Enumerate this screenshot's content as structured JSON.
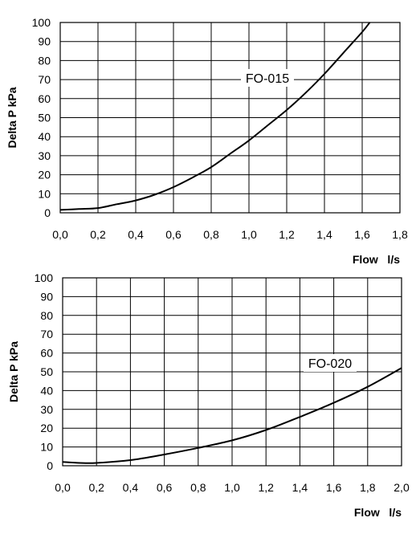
{
  "chart_data": [
    {
      "type": "line",
      "title": "",
      "xlabel": "Flow   l/s",
      "ylabel": "Delta P  kPa",
      "xlim": [
        0.0,
        1.8
      ],
      "ylim": [
        0,
        100
      ],
      "x_ticks": [
        "0,0",
        "0,2",
        "0,4",
        "0,6",
        "0,8",
        "1,0",
        "1,2",
        "1,4",
        "1,6",
        "1,8"
      ],
      "y_ticks": [
        "0",
        "10",
        "20",
        "30",
        "40",
        "50",
        "60",
        "70",
        "80",
        "90",
        "100"
      ],
      "grid": true,
      "series": [
        {
          "name": "FO-015",
          "x": [
            0.0,
            0.1,
            0.2,
            0.3,
            0.4,
            0.5,
            0.6,
            0.7,
            0.8,
            0.9,
            1.0,
            1.1,
            1.2,
            1.3,
            1.4,
            1.5,
            1.6,
            1.64
          ],
          "y": [
            1.5,
            2.0,
            2.5,
            4.5,
            6.5,
            9.5,
            13.5,
            18.5,
            24,
            31,
            38,
            46,
            54,
            63,
            73,
            84,
            95,
            100
          ]
        }
      ]
    },
    {
      "type": "line",
      "title": "",
      "xlabel": "Flow   l/s",
      "ylabel": "Delta P  kPa",
      "xlim": [
        0.0,
        2.0
      ],
      "ylim": [
        0,
        100
      ],
      "x_ticks": [
        "0,0",
        "0,2",
        "0,4",
        "0,6",
        "0,8",
        "1,0",
        "1,2",
        "1,4",
        "1,6",
        "1,8",
        "2,0"
      ],
      "y_ticks": [
        "0",
        "10",
        "20",
        "30",
        "40",
        "50",
        "60",
        "70",
        "80",
        "90",
        "100"
      ],
      "grid": true,
      "series": [
        {
          "name": "FO-020",
          "x": [
            0.0,
            0.1,
            0.2,
            0.4,
            0.6,
            0.8,
            1.0,
            1.2,
            1.4,
            1.6,
            1.8,
            2.0
          ],
          "y": [
            2.0,
            1.5,
            1.5,
            3.0,
            6.0,
            9.5,
            13.5,
            19,
            26,
            33.5,
            42,
            52
          ]
        }
      ]
    }
  ]
}
